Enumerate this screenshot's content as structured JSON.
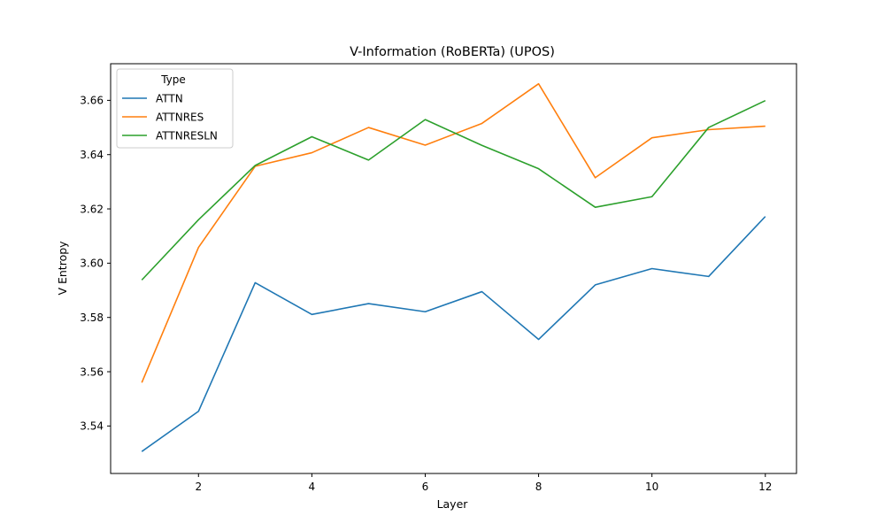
{
  "chart_data": {
    "type": "line",
    "title": "V-Information (RoBERTa) (UPOS)",
    "xlabel": "Layer",
    "ylabel": "V Entropy",
    "xlim": [
      0.45,
      12.55
    ],
    "ylim": [
      3.5225,
      3.6735
    ],
    "xticks": [
      2,
      4,
      6,
      8,
      10,
      12
    ],
    "xtick_labels": [
      "2",
      "4",
      "6",
      "8",
      "10",
      "12"
    ],
    "yticks": [
      3.54,
      3.56,
      3.58,
      3.6,
      3.62,
      3.64,
      3.66
    ],
    "ytick_labels": [
      "3.54",
      "3.56",
      "3.58",
      "3.60",
      "3.62",
      "3.64",
      "3.66"
    ],
    "grid": false,
    "legend": {
      "title": "Type",
      "placement": "upper-left"
    },
    "x": [
      1,
      2,
      3,
      4,
      5,
      6,
      7,
      8,
      9,
      10,
      11,
      12
    ],
    "series": [
      {
        "name": "ATTN",
        "color": "#1f77b4",
        "values": [
          3.5306,
          3.5454,
          3.5928,
          3.5811,
          3.5851,
          3.5821,
          3.5895,
          3.5719,
          3.592,
          3.598,
          3.5951,
          3.6172
        ]
      },
      {
        "name": "ATTNRES",
        "color": "#ff7f0e",
        "values": [
          3.556,
          3.6058,
          3.6357,
          3.6407,
          3.65,
          3.6435,
          3.6515,
          3.6661,
          3.6315,
          3.6462,
          3.6492,
          3.6505
        ]
      },
      {
        "name": "ATTNRESLN",
        "color": "#2ca02c",
        "values": [
          3.5938,
          3.616,
          3.636,
          3.6466,
          3.638,
          3.6529,
          3.6434,
          3.6348,
          3.6206,
          3.6245,
          3.65,
          3.6599
        ]
      }
    ]
  }
}
